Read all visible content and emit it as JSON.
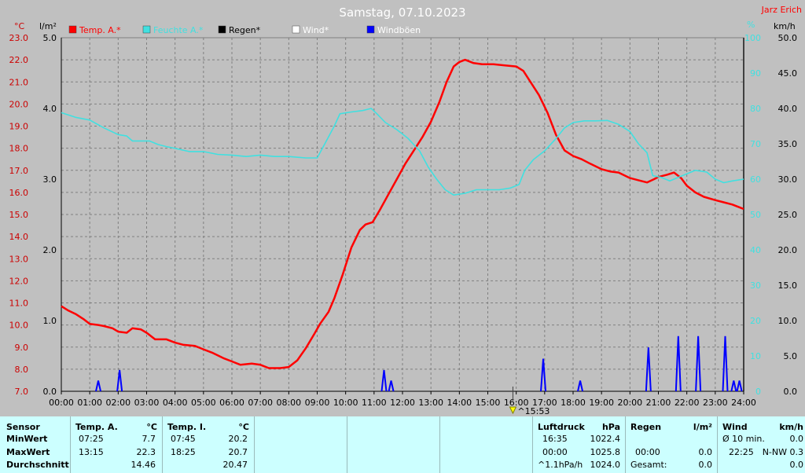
{
  "chart_data": {
    "type": "line",
    "title": "Samstag, 07.10.2023",
    "author": "Jarz Erich",
    "axes": {
      "left1": {
        "unit": "°C",
        "min": 7.0,
        "max": 23.0,
        "step": 1.0,
        "color": "#cc0000"
      },
      "left2": {
        "unit": "l/m²",
        "min": 0.0,
        "max": 5.0,
        "step": 1.0,
        "color": "#000000"
      },
      "right1": {
        "unit": "%",
        "min": 0,
        "max": 100,
        "step": 10,
        "color": "#40e0e0"
      },
      "right2": {
        "unit": "km/h",
        "min": 0.0,
        "max": 50.0,
        "step": 5.0,
        "color": "#000000"
      }
    },
    "x_ticks": [
      "00:00",
      "01:00",
      "02:00",
      "03:00",
      "04:00",
      "05:00",
      "06:00",
      "07:00",
      "08:00",
      "09:00",
      "10:00",
      "11:00",
      "12:00",
      "13:00",
      "14:00",
      "15:00",
      "16:00",
      "17:00",
      "18:00",
      "19:00",
      "20:00",
      "21:00",
      "22:00",
      "23:00",
      "24:00"
    ],
    "marker": {
      "label": "15:53",
      "hour": 15.883
    },
    "legend": [
      {
        "name": "Temp. A.*",
        "color": "#ff0000"
      },
      {
        "name": "Feuchte A.*",
        "color": "#40e0e0"
      },
      {
        "name": "Regen*",
        "color": "#000000"
      },
      {
        "name": "Wind*",
        "color": "#ffffff"
      },
      {
        "name": "Windböen",
        "color": "#0000ff"
      }
    ],
    "series": [
      {
        "name": "Temp. A.*",
        "axis": "left1",
        "color": "#ff0000",
        "points": [
          [
            0,
            10.85
          ],
          [
            0.25,
            10.65
          ],
          [
            0.5,
            10.5
          ],
          [
            0.8,
            10.25
          ],
          [
            1,
            10.05
          ],
          [
            1.3,
            10.0
          ],
          [
            1.5,
            9.95
          ],
          [
            1.8,
            9.85
          ],
          [
            2,
            9.7
          ],
          [
            2.3,
            9.65
          ],
          [
            2.5,
            9.85
          ],
          [
            2.8,
            9.8
          ],
          [
            3,
            9.65
          ],
          [
            3.3,
            9.35
          ],
          [
            3.7,
            9.35
          ],
          [
            4,
            9.2
          ],
          [
            4.3,
            9.1
          ],
          [
            4.7,
            9.05
          ],
          [
            5,
            8.9
          ],
          [
            5.3,
            8.75
          ],
          [
            5.7,
            8.5
          ],
          [
            6,
            8.35
          ],
          [
            6.3,
            8.2
          ],
          [
            6.7,
            8.25
          ],
          [
            7,
            8.2
          ],
          [
            7.3,
            8.05
          ],
          [
            7.7,
            8.05
          ],
          [
            8,
            8.1
          ],
          [
            8.3,
            8.4
          ],
          [
            8.6,
            8.95
          ],
          [
            8.9,
            9.6
          ],
          [
            9.1,
            10.05
          ],
          [
            9.4,
            10.6
          ],
          [
            9.6,
            11.2
          ],
          [
            9.9,
            12.3
          ],
          [
            10.2,
            13.5
          ],
          [
            10.5,
            14.3
          ],
          [
            10.7,
            14.55
          ],
          [
            10.95,
            14.65
          ],
          [
            11.2,
            15.2
          ],
          [
            11.5,
            15.9
          ],
          [
            11.8,
            16.6
          ],
          [
            12.1,
            17.3
          ],
          [
            12.4,
            17.9
          ],
          [
            12.7,
            18.5
          ],
          [
            13.0,
            19.2
          ],
          [
            13.3,
            20.1
          ],
          [
            13.55,
            21.0
          ],
          [
            13.8,
            21.7
          ],
          [
            14.0,
            21.9
          ],
          [
            14.2,
            22.0
          ],
          [
            14.5,
            21.85
          ],
          [
            14.8,
            21.8
          ],
          [
            15.2,
            21.8
          ],
          [
            15.6,
            21.75
          ],
          [
            16.0,
            21.7
          ],
          [
            16.25,
            21.5
          ],
          [
            16.5,
            21.0
          ],
          [
            16.8,
            20.4
          ],
          [
            17.1,
            19.6
          ],
          [
            17.4,
            18.6
          ],
          [
            17.7,
            17.9
          ],
          [
            18.0,
            17.65
          ],
          [
            18.3,
            17.5
          ],
          [
            18.6,
            17.3
          ],
          [
            19.0,
            17.05
          ],
          [
            19.3,
            16.95
          ],
          [
            19.6,
            16.9
          ],
          [
            20.0,
            16.65
          ],
          [
            20.3,
            16.55
          ],
          [
            20.6,
            16.45
          ],
          [
            20.85,
            16.6
          ],
          [
            21.0,
            16.7
          ],
          [
            21.3,
            16.8
          ],
          [
            21.55,
            16.9
          ],
          [
            21.8,
            16.65
          ],
          [
            22.0,
            16.3
          ],
          [
            22.3,
            16.0
          ],
          [
            22.6,
            15.8
          ],
          [
            23.0,
            15.65
          ],
          [
            23.3,
            15.55
          ],
          [
            23.6,
            15.45
          ],
          [
            23.9,
            15.3
          ],
          [
            24,
            15.25
          ]
        ]
      },
      {
        "name": "Feuchte A.*",
        "axis": "right1",
        "color": "#40e0e0",
        "points": [
          [
            0,
            78.8
          ],
          [
            0.5,
            77.5
          ],
          [
            1,
            76.7
          ],
          [
            1.5,
            74.5
          ],
          [
            2,
            72.6
          ],
          [
            2.3,
            72.2
          ],
          [
            2.5,
            70.8
          ],
          [
            2.8,
            70.8
          ],
          [
            3.1,
            70.8
          ],
          [
            3.4,
            69.8
          ],
          [
            3.7,
            69.2
          ],
          [
            4,
            68.7
          ],
          [
            4.5,
            67.8
          ],
          [
            5,
            67.8
          ],
          [
            5.5,
            67.0
          ],
          [
            6,
            66.8
          ],
          [
            6.5,
            66.4
          ],
          [
            7,
            66.8
          ],
          [
            7.5,
            66.4
          ],
          [
            8,
            66.4
          ],
          [
            8.6,
            66.0
          ],
          [
            9,
            66.0
          ],
          [
            9.3,
            70.5
          ],
          [
            9.6,
            75
          ],
          [
            9.8,
            78.5
          ],
          [
            10.2,
            79.0
          ],
          [
            10.6,
            79.4
          ],
          [
            10.9,
            80.0
          ],
          [
            11.1,
            78.5
          ],
          [
            11.4,
            76.0
          ],
          [
            11.8,
            74.0
          ],
          [
            12.2,
            71.5
          ],
          [
            12.6,
            68.0
          ],
          [
            12.9,
            63.5
          ],
          [
            13.2,
            60.0
          ],
          [
            13.5,
            57.0
          ],
          [
            13.8,
            55.5
          ],
          [
            14.2,
            56.0
          ],
          [
            14.6,
            57.0
          ],
          [
            15.0,
            57.0
          ],
          [
            15.4,
            57.0
          ],
          [
            15.8,
            57.5
          ],
          [
            16.1,
            58.5
          ],
          [
            16.3,
            62.5
          ],
          [
            16.6,
            65.5
          ],
          [
            17.0,
            68.0
          ],
          [
            17.4,
            71.5
          ],
          [
            17.7,
            74.5
          ],
          [
            18.0,
            76.0
          ],
          [
            18.4,
            76.5
          ],
          [
            18.8,
            76.5
          ],
          [
            19.2,
            76.6
          ],
          [
            19.6,
            75.5
          ],
          [
            20.0,
            73.5
          ],
          [
            20.3,
            70.0
          ],
          [
            20.6,
            67.5
          ],
          [
            20.8,
            61.0
          ],
          [
            21.1,
            60.5
          ],
          [
            21.4,
            59.5
          ],
          [
            21.7,
            60.5
          ],
          [
            22.0,
            61.5
          ],
          [
            22.3,
            62.5
          ],
          [
            22.7,
            62.0
          ],
          [
            23.0,
            60.0
          ],
          [
            23.3,
            59.0
          ],
          [
            23.6,
            59.5
          ],
          [
            24,
            60.0
          ]
        ]
      },
      {
        "name": "Windböen",
        "axis": "right2",
        "color": "#0000ff",
        "type": "impulse",
        "points": [
          [
            1.3,
            1.5
          ],
          [
            2.05,
            3.0
          ],
          [
            11.35,
            3.0
          ],
          [
            11.6,
            1.5
          ],
          [
            16.95,
            4.6
          ],
          [
            18.25,
            1.5
          ],
          [
            20.65,
            6.2
          ],
          [
            21.7,
            7.8
          ],
          [
            22.4,
            7.8
          ],
          [
            23.35,
            7.8
          ],
          [
            23.65,
            1.5
          ],
          [
            23.85,
            1.5
          ]
        ]
      }
    ]
  },
  "stats": {
    "sensor": {
      "header": "Sensor",
      "rows": [
        "MinWert",
        "MaxWert",
        "Durchschnitt"
      ]
    },
    "temp_a": {
      "header": "Temp. A.",
      "unit": "°C",
      "rows": [
        [
          "07:25",
          "7.7"
        ],
        [
          "13:15",
          "22.3"
        ],
        [
          "",
          "14.46"
        ]
      ]
    },
    "temp_i": {
      "header": "Temp. I.",
      "unit": "°C",
      "rows": [
        [
          "07:45",
          "20.2"
        ],
        [
          "18:25",
          "20.7"
        ],
        [
          "",
          "20.47"
        ]
      ]
    },
    "luftdruck": {
      "header": "Luftdruck",
      "unit": "hPa",
      "rows": [
        [
          "16:35",
          "1022.4"
        ],
        [
          "00:00",
          "1025.8"
        ],
        [
          "^1.1hPa/h",
          "1024.0"
        ]
      ]
    },
    "regen": {
      "header": "Regen",
      "unit": "l/m²",
      "rows": [
        [
          "",
          ""
        ],
        [
          "00:00",
          "0.0"
        ],
        [
          "Gesamt:",
          "0.0"
        ]
      ]
    },
    "wind": {
      "header": "Wind",
      "unit": "km/h",
      "rows": [
        [
          "Ø 10 min.",
          "0.0"
        ],
        [
          "22:25",
          "N-NW 0.3"
        ],
        [
          "",
          "0.0"
        ]
      ]
    }
  },
  "extra_row0": {
    "temp_a_unit": "°C",
    "regen_row1_val": "0.0"
  }
}
